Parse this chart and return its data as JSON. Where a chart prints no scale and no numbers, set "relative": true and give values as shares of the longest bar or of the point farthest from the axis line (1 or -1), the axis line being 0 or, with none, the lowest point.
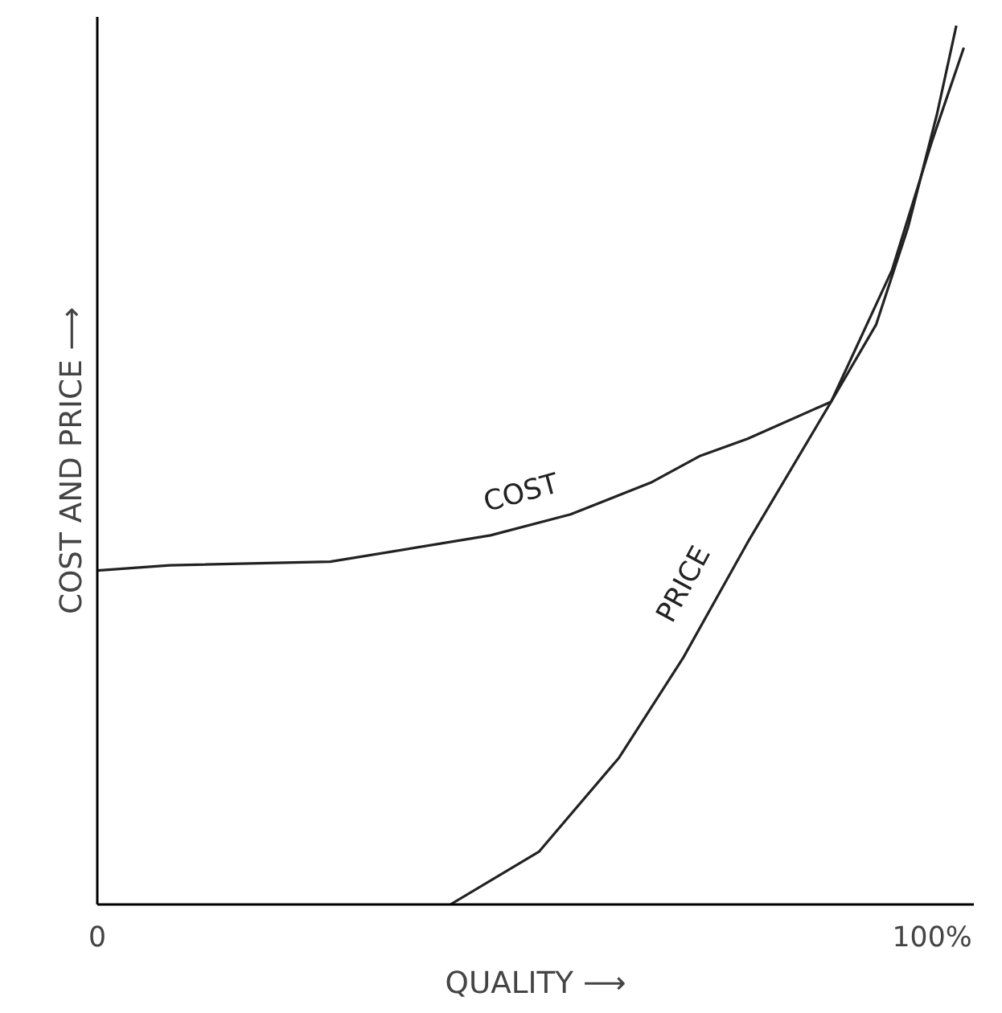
{
  "chart_data": {
    "type": "line",
    "relative": true,
    "xlabel": "QUALITY ⟶",
    "ylabel": "COST AND PRICE ⟶",
    "xlim": [
      0,
      105
    ],
    "xticks": [
      0,
      {
        "value": 100,
        "label": "100%"
      }
    ],
    "grid": false,
    "marker": "none",
    "line_style": "solid",
    "series": [
      {
        "name": "COST",
        "color": "#222222",
        "x": [
          0,
          8.7,
          27.9,
          47.1,
          56.7,
          66.3,
          72.1,
          77.9,
          87.9,
          93.3,
          97.1,
          100.6,
          102.9
        ],
        "values": [
          0.38,
          0.386,
          0.39,
          0.42,
          0.444,
          0.48,
          0.51,
          0.53,
          0.572,
          0.66,
          0.77,
          0.9,
          1.0
        ]
      },
      {
        "name": "PRICE",
        "color": "#222222",
        "x": [
          42.3,
          52.9,
          62.5,
          70.2,
          77.9,
          87.9,
          95.2,
          100,
          103.8
        ],
        "values": [
          0,
          0.06,
          0.167,
          0.281,
          0.412,
          0.572,
          0.722,
          0.869,
          0.975
        ]
      }
    ]
  }
}
